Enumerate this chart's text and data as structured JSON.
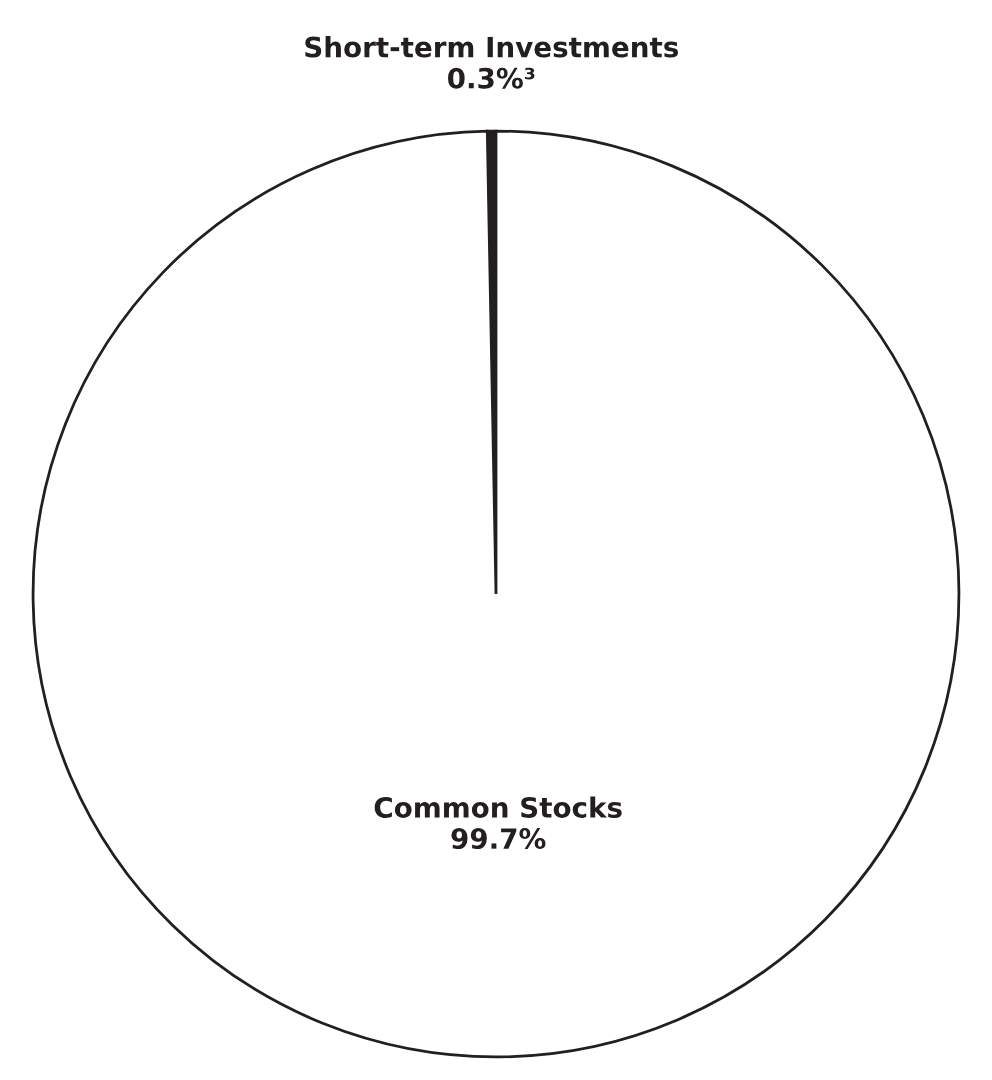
{
  "chart_data": {
    "type": "pie",
    "categories": [
      "Short-term Investments",
      "Common Stocks"
    ],
    "values": [
      0.3,
      99.7
    ],
    "colors": [
      "#231f20",
      "#ffffff"
    ],
    "value_labels": [
      "0.3%³",
      "99.7%"
    ]
  }
}
